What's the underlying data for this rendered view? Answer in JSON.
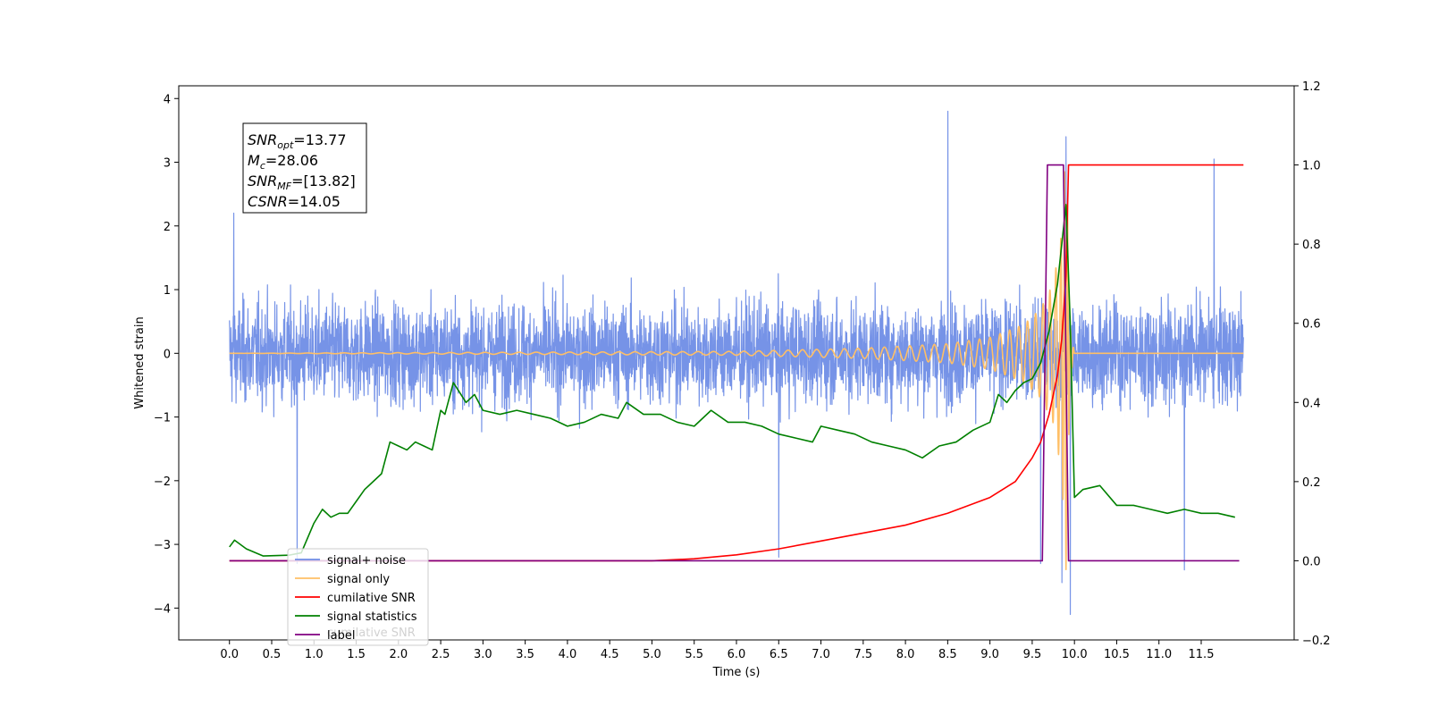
{
  "chart_data": {
    "type": "line",
    "title": "",
    "xlabel": "Time (s)",
    "ylabel": "Whitened strain",
    "ylabel_right": "",
    "xlim": [
      -0.6,
      12.6
    ],
    "ylim": [
      -4.5,
      4.2
    ],
    "ylim_right": [
      -0.2,
      1.2
    ],
    "grid": false,
    "legend_position": "lower-left",
    "x_ticks": [
      "0.0",
      "0.5",
      "1.0",
      "1.5",
      "2.0",
      "2.5",
      "3.0",
      "3.5",
      "4.0",
      "4.5",
      "5.0",
      "5.5",
      "6.0",
      "6.5",
      "7.0",
      "7.5",
      "8.0",
      "8.5",
      "9.0",
      "9.5",
      "10.0",
      "10.5",
      "11.0",
      "11.5"
    ],
    "y_ticks": [
      "4",
      "3",
      "2",
      "1",
      "0",
      "−1",
      "−2",
      "−3",
      "−4"
    ],
    "y_ticks_right": [
      "1.2",
      "1.0",
      "0.8",
      "0.6",
      "0.4",
      "0.2",
      "0.0",
      "−0.2"
    ],
    "annotation": {
      "lines": [
        {
          "base": "SNR",
          "sub": "opt",
          "rest": "=13.77"
        },
        {
          "base": "M",
          "sub": "c",
          "rest": "=28.06"
        },
        {
          "base": "SNR",
          "sub": "MF",
          "rest": "=[13.82]"
        },
        {
          "base": "CSNR",
          "sub": "",
          "rest": "=14.05"
        }
      ]
    },
    "legend_ghost_text": "cumilative SNR",
    "series": [
      {
        "name": "signal+ noise",
        "axis": "left",
        "color": "#6f8de6",
        "style": "noise",
        "x_range": [
          0.0,
          12.0
        ],
        "amplitude_typical": 1.3,
        "peaks": [
          [
            0.05,
            2.2
          ],
          [
            0.8,
            -3.3
          ],
          [
            6.5,
            -3.2
          ],
          [
            8.5,
            3.8
          ],
          [
            9.6,
            -3.3
          ],
          [
            9.85,
            -3.6
          ],
          [
            9.9,
            3.4
          ],
          [
            9.95,
            -4.1
          ],
          [
            11.3,
            -3.4
          ],
          [
            11.65,
            3.05
          ]
        ]
      },
      {
        "name": "signal only",
        "axis": "left",
        "color": "#ffbf66",
        "style": "chirp",
        "x_range": [
          0.0,
          12.0
        ],
        "merger_time": 9.9,
        "envelope": [
          [
            0.0,
            0.0
          ],
          [
            6.0,
            0.03
          ],
          [
            7.5,
            0.08
          ],
          [
            8.5,
            0.15
          ],
          [
            9.0,
            0.25
          ],
          [
            9.4,
            0.45
          ],
          [
            9.6,
            0.7
          ],
          [
            9.75,
            1.1
          ],
          [
            9.85,
            1.9
          ],
          [
            9.9,
            3.4
          ],
          [
            9.95,
            0.4
          ],
          [
            10.0,
            0.0
          ],
          [
            12.0,
            0.0
          ]
        ]
      },
      {
        "name": "cumilative SNR",
        "axis": "right",
        "color": "#ff0000",
        "style": "line",
        "points": [
          [
            0.0,
            0.0
          ],
          [
            5.0,
            0.0
          ],
          [
            5.5,
            0.005
          ],
          [
            6.0,
            0.015
          ],
          [
            6.5,
            0.03
          ],
          [
            7.0,
            0.05
          ],
          [
            7.5,
            0.07
          ],
          [
            8.0,
            0.09
          ],
          [
            8.5,
            0.12
          ],
          [
            9.0,
            0.16
          ],
          [
            9.3,
            0.2
          ],
          [
            9.5,
            0.26
          ],
          [
            9.6,
            0.3
          ],
          [
            9.7,
            0.37
          ],
          [
            9.8,
            0.47
          ],
          [
            9.85,
            0.56
          ],
          [
            9.9,
            0.72
          ],
          [
            9.93,
            1.0
          ],
          [
            10.0,
            1.0
          ],
          [
            11.0,
            1.0
          ],
          [
            12.0,
            1.0
          ]
        ]
      },
      {
        "name": "signal statistics",
        "axis": "right",
        "color": "#008000",
        "style": "line",
        "points": [
          [
            0.0,
            0.035
          ],
          [
            0.06,
            0.052
          ],
          [
            0.2,
            0.03
          ],
          [
            0.4,
            0.012
          ],
          [
            0.7,
            0.014
          ],
          [
            0.85,
            0.02
          ],
          [
            1.0,
            0.095
          ],
          [
            1.1,
            0.13
          ],
          [
            1.2,
            0.11
          ],
          [
            1.3,
            0.12
          ],
          [
            1.4,
            0.12
          ],
          [
            1.5,
            0.15
          ],
          [
            1.6,
            0.18
          ],
          [
            1.7,
            0.2
          ],
          [
            1.8,
            0.22
          ],
          [
            1.9,
            0.3
          ],
          [
            2.0,
            0.29
          ],
          [
            2.1,
            0.28
          ],
          [
            2.2,
            0.3
          ],
          [
            2.3,
            0.29
          ],
          [
            2.4,
            0.28
          ],
          [
            2.5,
            0.38
          ],
          [
            2.55,
            0.37
          ],
          [
            2.65,
            0.45
          ],
          [
            2.8,
            0.4
          ],
          [
            2.9,
            0.42
          ],
          [
            3.0,
            0.38
          ],
          [
            3.2,
            0.37
          ],
          [
            3.4,
            0.38
          ],
          [
            3.6,
            0.37
          ],
          [
            3.8,
            0.36
          ],
          [
            4.0,
            0.34
          ],
          [
            4.2,
            0.35
          ],
          [
            4.4,
            0.37
          ],
          [
            4.6,
            0.36
          ],
          [
            4.7,
            0.4
          ],
          [
            4.9,
            0.37
          ],
          [
            5.1,
            0.37
          ],
          [
            5.3,
            0.35
          ],
          [
            5.5,
            0.34
          ],
          [
            5.7,
            0.38
          ],
          [
            5.9,
            0.35
          ],
          [
            6.1,
            0.35
          ],
          [
            6.3,
            0.34
          ],
          [
            6.5,
            0.32
          ],
          [
            6.7,
            0.31
          ],
          [
            6.9,
            0.3
          ],
          [
            7.0,
            0.34
          ],
          [
            7.2,
            0.33
          ],
          [
            7.4,
            0.32
          ],
          [
            7.6,
            0.3
          ],
          [
            7.8,
            0.29
          ],
          [
            8.0,
            0.28
          ],
          [
            8.2,
            0.26
          ],
          [
            8.4,
            0.29
          ],
          [
            8.6,
            0.3
          ],
          [
            8.8,
            0.33
          ],
          [
            9.0,
            0.35
          ],
          [
            9.1,
            0.42
          ],
          [
            9.2,
            0.4
          ],
          [
            9.3,
            0.43
          ],
          [
            9.4,
            0.45
          ],
          [
            9.5,
            0.46
          ],
          [
            9.6,
            0.5
          ],
          [
            9.7,
            0.58
          ],
          [
            9.8,
            0.7
          ],
          [
            9.9,
            0.9
          ],
          [
            9.95,
            0.6
          ],
          [
            10.0,
            0.16
          ],
          [
            10.1,
            0.18
          ],
          [
            10.3,
            0.19
          ],
          [
            10.5,
            0.14
          ],
          [
            10.7,
            0.14
          ],
          [
            10.9,
            0.13
          ],
          [
            11.1,
            0.12
          ],
          [
            11.3,
            0.13
          ],
          [
            11.5,
            0.12
          ],
          [
            11.7,
            0.12
          ],
          [
            11.9,
            0.11
          ]
        ]
      },
      {
        "name": "label",
        "axis": "right",
        "color": "#800080",
        "style": "line",
        "points": [
          [
            0.0,
            0.0
          ],
          [
            9.62,
            0.0
          ],
          [
            9.68,
            1.0
          ],
          [
            9.87,
            1.0
          ],
          [
            9.93,
            0.0
          ],
          [
            11.95,
            0.0
          ]
        ]
      }
    ]
  }
}
